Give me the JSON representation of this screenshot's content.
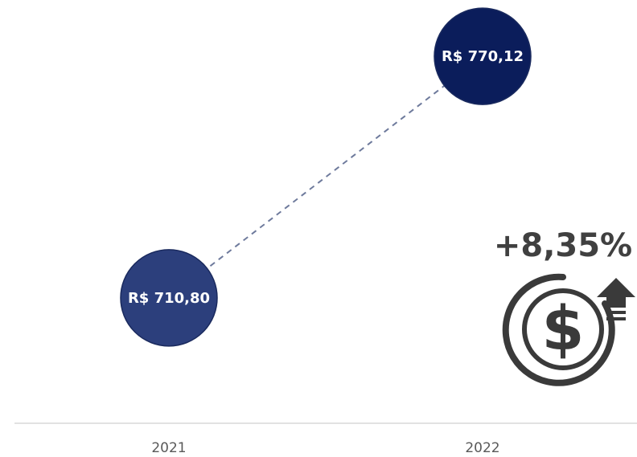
{
  "chart_data": {
    "type": "dot",
    "categories": [
      "2021",
      "2022"
    ],
    "values": [
      710.8,
      770.12
    ],
    "value_labels": [
      "R$ 710,80",
      "R$ 770,12"
    ],
    "colors": [
      "#2c3f7c",
      "#0b1d5b"
    ],
    "ylim": [
      680,
      780
    ],
    "annotation": "+8,35%"
  }
}
